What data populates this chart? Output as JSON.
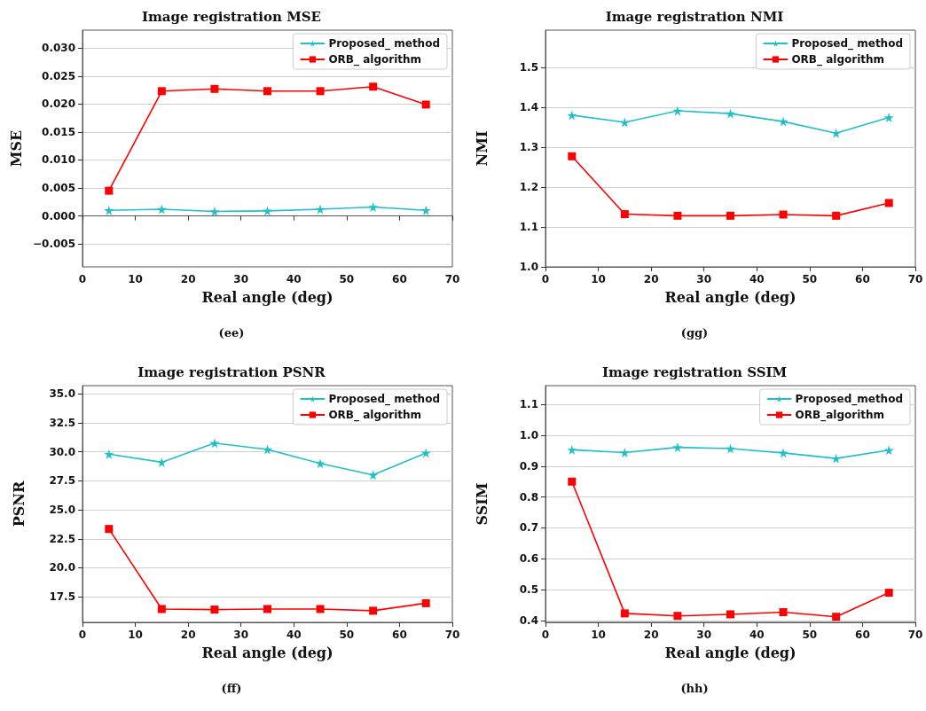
{
  "chart_data": [
    {
      "type": "line",
      "title": "Image registration MSE",
      "xlabel": "Real angle (deg)",
      "ylabel": "MSE",
      "annotations": [
        "(ee)"
      ],
      "x": [
        5,
        15,
        25,
        35,
        45,
        55,
        65
      ],
      "series": [
        {
          "name": "Proposed_ method",
          "color": "#20c0c8",
          "marker": "star",
          "values": [
            0.001,
            0.0012,
            0.0008,
            0.0009,
            0.0012,
            0.0016,
            0.001
          ]
        },
        {
          "name": "ORB_ algorithm",
          "color": "#ff0000",
          "marker": "square",
          "values": [
            0.0045,
            0.0223,
            0.0227,
            0.0223,
            0.0223,
            0.0231,
            0.0199
          ]
        }
      ],
      "xlim": [
        0,
        70
      ],
      "xticks": [
        0,
        10,
        20,
        30,
        40,
        50,
        60,
        70
      ],
      "ylim": [
        -0.0091,
        0.0332
      ],
      "yticks": [
        {
          "value": -0.005,
          "label": "−0.005"
        },
        {
          "value": 0,
          "label": "0.000"
        },
        {
          "value": 0.005,
          "label": "0.005"
        },
        {
          "value": 0.01,
          "label": "0.010"
        },
        {
          "value": 0.015,
          "label": "0.015"
        },
        {
          "value": 0.02,
          "label": "0.020"
        },
        {
          "value": 0.025,
          "label": "0.025"
        },
        {
          "value": 0.03,
          "label": "0.030"
        }
      ],
      "grid": "y",
      "legend": "top right",
      "line_style": "solid"
    },
    {
      "type": "line",
      "title": "Image registration NMI",
      "xlabel": "Real angle (deg)",
      "ylabel": "NMI",
      "annotations": [
        "(gg)"
      ],
      "x": [
        5,
        15,
        25,
        35,
        45,
        55,
        65
      ],
      "series": [
        {
          "name": "Proposed_ method",
          "color": "#20c0c8",
          "marker": "star",
          "values": [
            1.38,
            1.362,
            1.391,
            1.384,
            1.364,
            1.335,
            1.374
          ]
        },
        {
          "name": "ORB_ algorithm",
          "color": "#ff0000",
          "marker": "square",
          "values": [
            1.277,
            1.132,
            1.128,
            1.128,
            1.131,
            1.128,
            1.16
          ]
        }
      ],
      "xlim": [
        0,
        70
      ],
      "xticks": [
        0,
        10,
        20,
        30,
        40,
        50,
        60,
        70
      ],
      "ylim": [
        1.0,
        1.593
      ],
      "yticks": [
        {
          "value": 1,
          "label": "1.0"
        },
        1.1,
        1.2,
        1.3,
        1.4,
        1.5
      ],
      "grid": "y",
      "legend": "top right",
      "line_style": "solid"
    },
    {
      "type": "line",
      "title": "Image registration PSNR",
      "xlabel": "Real angle (deg)",
      "ylabel": "PSNR",
      "annotations": [
        "(ff)"
      ],
      "x": [
        5,
        15,
        25,
        35,
        45,
        55,
        65
      ],
      "series": [
        {
          "name": "Proposed_ method",
          "color": "#20c0c8",
          "marker": "star",
          "values": [
            29.8,
            29.1,
            30.75,
            30.2,
            29.0,
            28.0,
            29.9
          ]
        },
        {
          "name": "ORB_ algorithm",
          "color": "#ff0000",
          "marker": "square",
          "values": [
            23.35,
            16.45,
            16.4,
            16.45,
            16.45,
            16.3,
            16.95
          ]
        }
      ],
      "xlim": [
        0,
        70
      ],
      "xticks": [
        0,
        10,
        20,
        30,
        40,
        50,
        60,
        70
      ],
      "ylim": [
        15.3,
        35.7
      ],
      "yticks": [
        17.5,
        {
          "value": 20,
          "label": "20.0"
        },
        22.5,
        {
          "value": 25,
          "label": "25.0"
        },
        27.5,
        {
          "value": 30,
          "label": "30.0"
        },
        32.5,
        {
          "value": 35,
          "label": "35.0"
        }
      ],
      "grid": "y",
      "legend": "top right",
      "line_style": "solid"
    },
    {
      "type": "line",
      "title": "Image registration SSIM",
      "xlabel": "Real angle (deg)",
      "ylabel": "SSIM",
      "annotations": [
        "(hh)"
      ],
      "x": [
        5,
        15,
        25,
        35,
        45,
        55,
        65
      ],
      "series": [
        {
          "name": "Proposed_method",
          "color": "#20c0c8",
          "marker": "star",
          "values": [
            0.953,
            0.944,
            0.961,
            0.957,
            0.943,
            0.925,
            0.952
          ]
        },
        {
          "name": "ORB_algorithm",
          "color": "#ff0000",
          "marker": "square",
          "values": [
            0.85,
            0.423,
            0.415,
            0.42,
            0.427,
            0.412,
            0.49
          ]
        }
      ],
      "xlim": [
        0,
        70
      ],
      "xticks": [
        0,
        10,
        20,
        30,
        40,
        50,
        60,
        70
      ],
      "ylim": [
        0.394,
        1.161
      ],
      "yticks": [
        0.4,
        0.5,
        0.6,
        0.7,
        0.8,
        0.9,
        {
          "value": 1,
          "label": "1.0"
        },
        1.1
      ],
      "grid": "y",
      "legend": "top right",
      "line_style": "solid"
    }
  ]
}
